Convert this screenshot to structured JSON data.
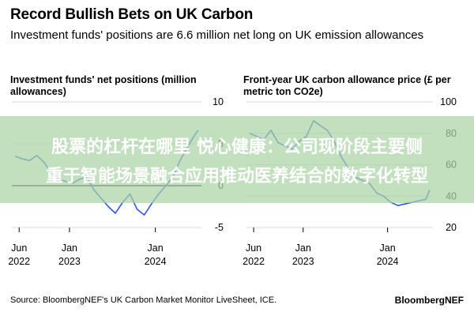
{
  "header": {
    "title": "Record Bullish Bets on UK Carbon",
    "subtitle": "Investment funds' positions are 6.6 million net long on UK emission allowances"
  },
  "overlay": {
    "line1": "股票的杠杆在哪里 悦心健康：公司现阶段主要侧",
    "line2": "重于智能场景融合应用推动医养结合的数字化转型"
  },
  "footer": {
    "source": "Source: BloombergNEF's UK Carbon Market Monitor LiveSheet, ICE.",
    "brand": "BloombergNEF"
  },
  "colors": {
    "line": "#2f55e8",
    "grid": "#d9d9d9",
    "zero_line": "#000000"
  },
  "chart_data": [
    {
      "type": "line",
      "title": "Investment funds' net positions (million allowances)",
      "ylim": [
        -5,
        10
      ],
      "yticks": [
        10,
        5,
        0,
        -5
      ],
      "ytick_labels": [
        "10",
        "5",
        "0",
        "-5"
      ],
      "xlim": [
        "2022-05-01",
        "2024-07-15"
      ],
      "xticks": [
        "2022-06-01",
        "2023-01-01",
        "2024-01-01"
      ],
      "xtick_labels": [
        [
          "Jun",
          "2022"
        ],
        [
          "Jan",
          "2023"
        ],
        [
          "Jan",
          "2024"
        ]
      ],
      "grid": true,
      "series": [
        {
          "x": [
            "2022-05-15",
            "2022-06-15",
            "2022-07-15",
            "2022-08-15",
            "2022-09-15",
            "2022-10-15",
            "2022-11-15",
            "2022-12-15",
            "2023-01-15",
            "2023-02-15",
            "2023-03-15",
            "2023-04-15",
            "2023-05-15",
            "2023-06-15",
            "2023-07-15",
            "2023-08-15",
            "2023-09-15",
            "2023-10-15",
            "2023-11-15",
            "2023-12-15",
            "2024-01-15",
            "2024-02-15",
            "2024-03-15",
            "2024-04-15",
            "2024-05-15",
            "2024-06-15",
            "2024-07-01"
          ],
          "y": [
            3.5,
            3.2,
            3.0,
            3.6,
            2.8,
            1.5,
            0.8,
            0.5,
            0.3,
            0.8,
            1.0,
            -0.5,
            -1.5,
            -2.5,
            -3.3,
            -2.0,
            -1.0,
            -2.8,
            -3.5,
            -2.2,
            -1.0,
            0.0,
            1.0,
            3.0,
            4.5,
            6.0,
            6.6
          ]
        }
      ]
    },
    {
      "type": "line",
      "title": "Front-year UK carbon allowance price (£ per metric ton CO2e)",
      "ylim": [
        20,
        100
      ],
      "yticks": [
        100,
        80,
        60,
        40,
        20
      ],
      "ytick_labels": [
        "100",
        "80",
        "60",
        "40",
        "20"
      ],
      "xlim": [
        "2022-05-01",
        "2024-07-15"
      ],
      "xticks": [
        "2022-06-01",
        "2023-01-01",
        "2024-01-01"
      ],
      "xtick_labels": [
        [
          "Jun",
          "2022"
        ],
        [
          "Jan",
          "2023"
        ],
        [
          "Jan",
          "2024"
        ]
      ],
      "grid": true,
      "series": [
        {
          "x": [
            "2022-05-15",
            "2022-06-15",
            "2022-07-15",
            "2022-08-15",
            "2022-09-15",
            "2022-10-15",
            "2022-11-15",
            "2022-12-15",
            "2023-01-15",
            "2023-02-15",
            "2023-03-15",
            "2023-04-15",
            "2023-05-15",
            "2023-06-15",
            "2023-07-15",
            "2023-08-15",
            "2023-09-15",
            "2023-10-15",
            "2023-11-15",
            "2023-12-15",
            "2024-01-15",
            "2024-02-15",
            "2024-03-15",
            "2024-04-15",
            "2024-05-15",
            "2024-06-15",
            "2024-07-01"
          ],
          "y": [
            80,
            78,
            76,
            82,
            74,
            72,
            70,
            75,
            78,
            88,
            85,
            82,
            75,
            65,
            58,
            52,
            50,
            48,
            42,
            40,
            36,
            34,
            35,
            36,
            37,
            38,
            44
          ]
        }
      ]
    }
  ]
}
